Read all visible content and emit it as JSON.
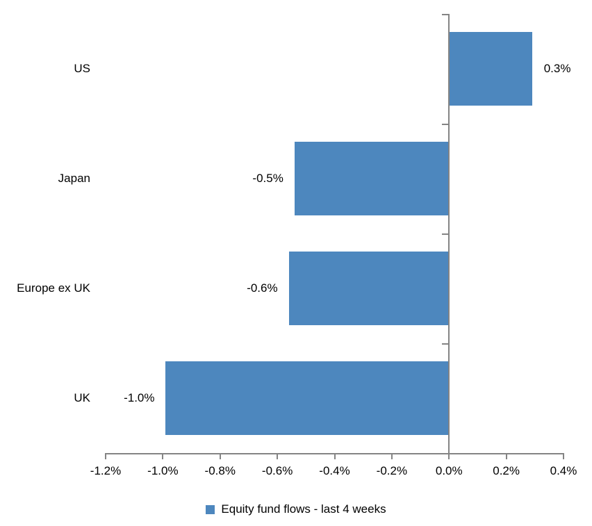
{
  "chart_data": {
    "type": "bar",
    "orientation": "horizontal",
    "categories": [
      "US",
      "Japan",
      "Europe ex UK",
      "UK"
    ],
    "values": [
      0.29,
      -0.54,
      -0.56,
      -0.99
    ],
    "data_labels": [
      "0.3%",
      "-0.5%",
      "-0.6%",
      "-1.0%"
    ],
    "series_name": "Equity fund flows - last 4 weeks",
    "x_ticks": [
      "-1.2%",
      "-1.0%",
      "-0.8%",
      "-0.6%",
      "-0.4%",
      "-0.2%",
      "0.0%",
      "0.2%",
      "0.4%"
    ],
    "x_tick_values": [
      -1.2,
      -1.0,
      -0.8,
      -0.6,
      -0.4,
      -0.2,
      0.0,
      0.2,
      0.4
    ],
    "xlim": [
      -1.2,
      0.4
    ],
    "grid": false,
    "legend_position": "bottom",
    "bar_color": "#4d87be",
    "axis_color": "#848484",
    "text_color": "#000000"
  }
}
